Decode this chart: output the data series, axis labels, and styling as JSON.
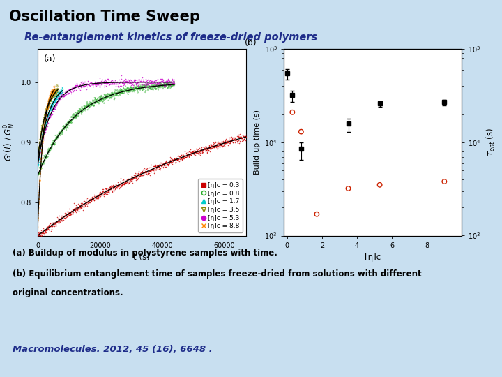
{
  "title": "Oscillation Time Sweep",
  "subtitle": "Re-entanglement kinetics of freeze-dried polymers",
  "bg_color": "#c8dff0",
  "caption_a": "(a) Buildup of modulus in polystyrene samples with time.",
  "caption_b": "(b) Equilibrium entanglement time of samples freeze-dried from solutions with different",
  "caption_c": "original concentrations.",
  "reference": "Macromolecules. 2012, 45 (16), 6648 .",
  "plot_a": {
    "label": "(a)",
    "xlabel": "t (s)",
    "xlim": [
      0,
      67000
    ],
    "ylim": [
      0.745,
      1.055
    ],
    "yticks": [
      0.8,
      0.9,
      1.0
    ],
    "xticks": [
      0,
      20000,
      40000,
      60000
    ],
    "series": [
      {
        "label": "[η]c = 0.3",
        "color": "#cc0000",
        "marker": "s",
        "filled": true,
        "tau": 65000,
        "y0": 0.745,
        "t_end": 67000,
        "n": 1200
      },
      {
        "label": "[η]c = 0.8",
        "color": "#22aa22",
        "marker": "o",
        "filled": false,
        "tau": 12000,
        "y0": 0.845,
        "t_end": 44000,
        "n": 700
      },
      {
        "label": "[η]c = 1.7",
        "color": "#00cccc",
        "marker": "^",
        "filled": true,
        "tau": 3500,
        "y0": 0.86,
        "t_end": 8000,
        "n": 350
      },
      {
        "label": "[η]c = 3.5",
        "color": "#888800",
        "marker": "v",
        "filled": false,
        "tau": 2800,
        "y0": 0.87,
        "t_end": 6500,
        "n": 280
      },
      {
        "label": "[η]c = 5.3",
        "color": "#cc00cc",
        "marker": "o",
        "filled": true,
        "tau": 4500,
        "y0": 0.865,
        "t_end": 44000,
        "n": 600
      },
      {
        "label": "[η]c = 8.8",
        "color": "#ff8800",
        "marker": "x",
        "filled": false,
        "tau": 1800,
        "y0": 0.755,
        "t_end": 5500,
        "n": 250
      }
    ]
  },
  "plot_b": {
    "label": "(b)",
    "xlabel": "[η]c",
    "ylabel_left": "Build-up time (s)",
    "xlim": [
      -0.2,
      10
    ],
    "ylim_log": [
      1000.0,
      100000.0
    ],
    "black_squares": {
      "x": [
        0.0,
        0.3,
        0.8,
        3.5,
        5.3,
        9.0
      ],
      "y": [
        55000,
        32000,
        8500,
        16000,
        26000,
        27000
      ],
      "yerr_lo": [
        8000,
        5000,
        2000,
        3000,
        2000,
        2000
      ],
      "yerr_hi": [
        6000,
        4000,
        1500,
        2000,
        1500,
        1500
      ]
    },
    "red_circles": {
      "x": [
        0.3,
        0.8,
        1.7,
        3.5,
        5.3,
        9.0
      ],
      "y": [
        21000,
        13000,
        1700,
        3200,
        3500,
        3800
      ]
    }
  }
}
